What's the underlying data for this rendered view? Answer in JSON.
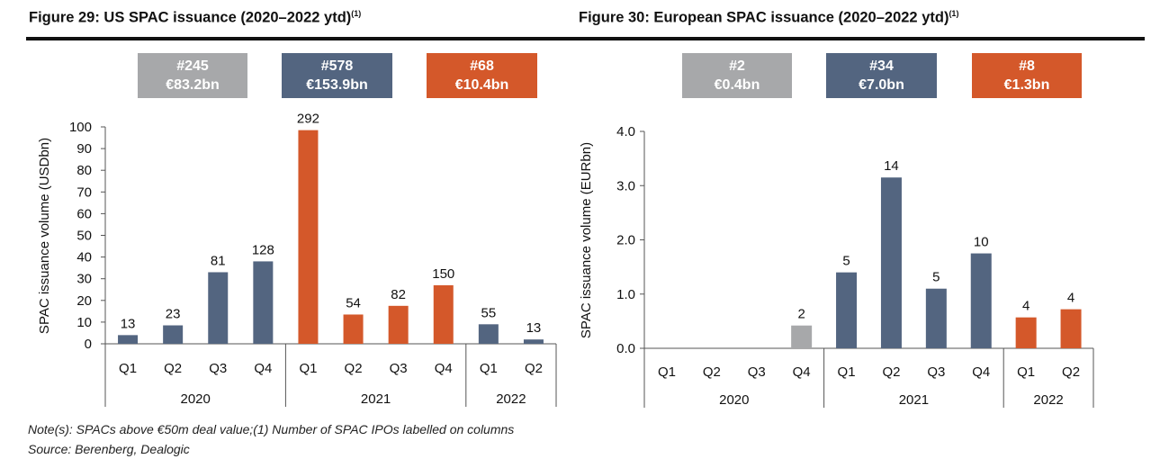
{
  "titles": {
    "left": "Figure 29: US SPAC issuance (2020–2022 ytd)",
    "left_sup": "(1)",
    "right": "Figure 30: European SPAC issuance (2020–2022 ytd)",
    "right_sup": "(1)"
  },
  "summaries": {
    "us": [
      {
        "count": "#245",
        "value": "€83.2bn"
      },
      {
        "count": "#578",
        "value": "€153.9bn"
      },
      {
        "count": "#68",
        "value": "€10.4bn"
      }
    ],
    "eu": [
      {
        "count": "#2",
        "value": "€0.4bn"
      },
      {
        "count": "#34",
        "value": "€7.0bn"
      },
      {
        "count": "#8",
        "value": "€1.3bn"
      }
    ]
  },
  "colors": {
    "2020": "#536580",
    "2021": "#d4582a",
    "2022": "#536580",
    "gray": "#a7a8aa",
    "blue": "#536580",
    "orange": "#d4582a"
  },
  "notes": {
    "line1": "Note(s): SPACs above €50m deal value;(1) Number of SPAC IPOs labelled on columns",
    "line2": "Source: Berenberg, Dealogic"
  },
  "chart_data": [
    {
      "type": "bar",
      "title": "Figure 29: US SPAC issuance (2020–2022 ytd)",
      "ylabel": "SPAC issuance volume (USDbn)",
      "ylim": [
        0,
        100
      ],
      "yticks": [
        "0",
        "10",
        "20",
        "30",
        "40",
        "50",
        "60",
        "70",
        "80",
        "90",
        "100"
      ],
      "categories": [
        "Q1",
        "Q2",
        "Q3",
        "Q4",
        "Q1",
        "Q2",
        "Q3",
        "Q4",
        "Q1",
        "Q2"
      ],
      "groups": [
        {
          "label": "2020",
          "count": 4
        },
        {
          "label": "2021",
          "count": 4
        },
        {
          "label": "2022",
          "count": 2
        }
      ],
      "values": [
        4,
        8.5,
        33,
        38,
        98.5,
        13.5,
        17.5,
        27,
        9,
        2
      ],
      "data_labels": [
        "13",
        "23",
        "81",
        "128",
        "292",
        "54",
        "82",
        "150",
        "55",
        "13"
      ],
      "bar_colors": [
        "#536580",
        "#536580",
        "#536580",
        "#536580",
        "#d4582a",
        "#d4582a",
        "#d4582a",
        "#d4582a",
        "#536580",
        "#536580"
      ],
      "grid": false
    },
    {
      "type": "bar",
      "title": "Figure 30: European SPAC issuance (2020–2022 ytd)",
      "ylabel": "SPAC issuance volume (EURbn)",
      "ylim": [
        0,
        4
      ],
      "yticks": [
        "0.0",
        "1.0",
        "2.0",
        "3.0",
        "4.0"
      ],
      "categories": [
        "Q1",
        "Q2",
        "Q3",
        "Q4",
        "Q1",
        "Q2",
        "Q3",
        "Q4",
        "Q1",
        "Q2"
      ],
      "groups": [
        {
          "label": "2020",
          "count": 4
        },
        {
          "label": "2021",
          "count": 4
        },
        {
          "label": "2022",
          "count": 2
        }
      ],
      "values": [
        0,
        0,
        0,
        0.42,
        1.4,
        3.15,
        1.1,
        1.75,
        0.57,
        0.72
      ],
      "data_labels": [
        "",
        "",
        "",
        "2",
        "5",
        "14",
        "5",
        "10",
        "4",
        "4"
      ],
      "bar_colors": [
        "#a7a8aa",
        "#a7a8aa",
        "#a7a8aa",
        "#a7a8aa",
        "#536580",
        "#536580",
        "#536580",
        "#536580",
        "#d4582a",
        "#d4582a"
      ],
      "grid": false
    }
  ]
}
